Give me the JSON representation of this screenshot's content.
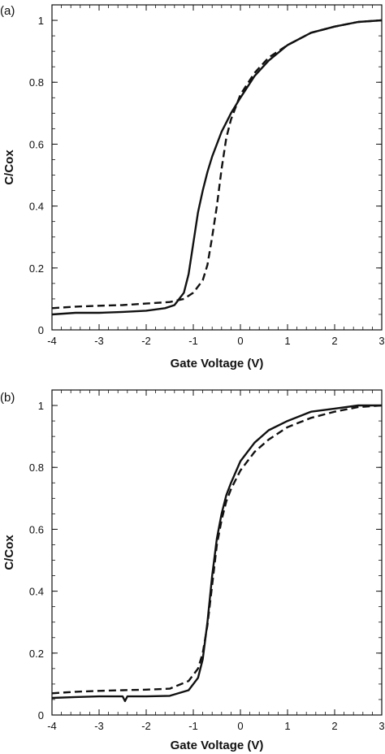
{
  "chart_data": [
    {
      "type": "line",
      "panel_label": "(a)",
      "xlabel": "Gate Voltage (V)",
      "ylabel": "C/Cox",
      "xlim": [
        -4,
        3
      ],
      "ylim": [
        0,
        1.05
      ],
      "x_ticks": [
        -4,
        -3,
        -2,
        -1,
        0,
        1,
        2,
        3
      ],
      "y_ticks": [
        0,
        0.2,
        0.4,
        0.6,
        0.8,
        1
      ],
      "y_tick_labels": [
        "0",
        "0.2",
        "0.4",
        "0.6",
        "0.8",
        "1"
      ],
      "grid": false,
      "series": [
        {
          "style": "solid",
          "x": [
            -4,
            -3.5,
            -3,
            -2.5,
            -2,
            -1.6,
            -1.4,
            -1.2,
            -1.1,
            -1.0,
            -0.9,
            -0.8,
            -0.7,
            -0.6,
            -0.5,
            -0.4,
            -0.3,
            -0.2,
            0,
            0.3,
            0.6,
            1.0,
            1.5,
            2.0,
            2.5,
            3.0
          ],
          "y": [
            0.05,
            0.055,
            0.055,
            0.058,
            0.062,
            0.07,
            0.08,
            0.12,
            0.18,
            0.28,
            0.38,
            0.45,
            0.51,
            0.56,
            0.6,
            0.64,
            0.67,
            0.7,
            0.75,
            0.82,
            0.87,
            0.92,
            0.96,
            0.98,
            0.995,
            1.0
          ]
        },
        {
          "style": "dashed",
          "x": [
            -4,
            -3.5,
            -3,
            -2.5,
            -2,
            -1.5,
            -1.2,
            -1.0,
            -0.8,
            -0.7,
            -0.6,
            -0.5,
            -0.4,
            -0.3,
            -0.2,
            0,
            0.3,
            0.6,
            1.0,
            1.5,
            2.0,
            2.5,
            3.0
          ],
          "y": [
            0.07,
            0.075,
            0.078,
            0.08,
            0.085,
            0.09,
            0.1,
            0.12,
            0.16,
            0.21,
            0.3,
            0.4,
            0.52,
            0.62,
            0.68,
            0.76,
            0.83,
            0.88,
            0.92,
            0.96,
            0.98,
            0.995,
            1.0
          ]
        }
      ]
    },
    {
      "type": "line",
      "panel_label": "(b)",
      "xlabel": "Gate Voltage (V)",
      "ylabel": "C/Cox",
      "xlim": [
        -4,
        3
      ],
      "ylim": [
        0,
        1.05
      ],
      "x_ticks": [
        -4,
        -3,
        -2,
        -1,
        0,
        1,
        2,
        3
      ],
      "y_ticks": [
        0,
        0.2,
        0.4,
        0.6,
        0.8,
        1
      ],
      "y_tick_labels": [
        "0",
        "0.2",
        "0.4",
        "0.6",
        "0.8",
        "1"
      ],
      "grid": false,
      "series": [
        {
          "style": "solid",
          "x": [
            -4,
            -3.5,
            -3,
            -2.5,
            -2.45,
            -2.4,
            -2.0,
            -1.5,
            -1.1,
            -0.9,
            -0.8,
            -0.7,
            -0.6,
            -0.5,
            -0.4,
            -0.3,
            -0.2,
            0,
            0.3,
            0.6,
            1.0,
            1.5,
            2.0,
            2.5,
            3.0
          ],
          "y": [
            0.055,
            0.058,
            0.06,
            0.06,
            0.045,
            0.06,
            0.06,
            0.062,
            0.08,
            0.12,
            0.18,
            0.3,
            0.45,
            0.57,
            0.65,
            0.71,
            0.75,
            0.82,
            0.88,
            0.92,
            0.95,
            0.98,
            0.99,
            1.0,
            1.0
          ]
        },
        {
          "style": "dashed",
          "x": [
            -4,
            -3.5,
            -3,
            -2.5,
            -2.0,
            -1.5,
            -1.1,
            -0.9,
            -0.8,
            -0.7,
            -0.6,
            -0.5,
            -0.4,
            -0.3,
            -0.2,
            0,
            0.3,
            0.6,
            1.0,
            1.5,
            2.0,
            2.5,
            3.0
          ],
          "y": [
            0.07,
            0.075,
            0.078,
            0.08,
            0.082,
            0.085,
            0.11,
            0.15,
            0.2,
            0.29,
            0.42,
            0.55,
            0.63,
            0.69,
            0.73,
            0.79,
            0.85,
            0.89,
            0.93,
            0.96,
            0.98,
            0.995,
            1.0
          ]
        }
      ]
    }
  ]
}
